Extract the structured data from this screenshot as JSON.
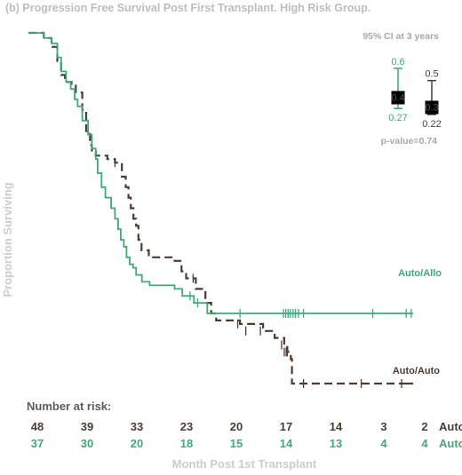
{
  "colors": {
    "auto_auto": "#4a3c34",
    "auto_allo": "#3faa78",
    "muted": "#a8a8a8"
  },
  "chart_data": {
    "type": "line",
    "title": "(b)  Progression Free Survival Post First Transplant. High Risk Group.",
    "xlabel": "Month Post 1st Transplant",
    "ylabel": "Proportion Surviving",
    "xlim": [
      0,
      100
    ],
    "ylim": [
      0,
      1
    ],
    "grid": false,
    "series": [
      {
        "name": "Auto/Allo",
        "color": "#3faa78",
        "style": "solid",
        "steps": [
          [
            0,
            1.0
          ],
          [
            4,
            0.985
          ],
          [
            6,
            0.97
          ],
          [
            7.5,
            0.93
          ],
          [
            8.5,
            0.89
          ],
          [
            9.8,
            0.86
          ],
          [
            11,
            0.84
          ],
          [
            12,
            0.81
          ],
          [
            12.8,
            0.79
          ],
          [
            14,
            0.75
          ],
          [
            15.5,
            0.71
          ],
          [
            16.5,
            0.67
          ],
          [
            17.5,
            0.64
          ],
          [
            18,
            0.6
          ],
          [
            19,
            0.56
          ],
          [
            20,
            0.53
          ],
          [
            21.5,
            0.5
          ],
          [
            22.5,
            0.47
          ],
          [
            23.3,
            0.44
          ],
          [
            24,
            0.41
          ],
          [
            24.8,
            0.39
          ],
          [
            25.5,
            0.36
          ],
          [
            26.3,
            0.34
          ],
          [
            27.2,
            0.33
          ],
          [
            28,
            0.31
          ],
          [
            29.5,
            0.29
          ],
          [
            31.5,
            0.28
          ],
          [
            38,
            0.27
          ],
          [
            40,
            0.25
          ],
          [
            43,
            0.23
          ],
          [
            46.5,
            0.2
          ],
          [
            100,
            0.2
          ]
        ],
        "end_x": 100,
        "censors": [
          [
            42,
            0.25
          ],
          [
            44,
            0.23
          ],
          [
            55,
            0.2
          ],
          [
            66.3,
            0.2
          ],
          [
            66.9,
            0.2
          ],
          [
            67.5,
            0.2
          ],
          [
            68.1,
            0.2
          ],
          [
            68.8,
            0.2
          ],
          [
            69.4,
            0.2
          ],
          [
            70.2,
            0.2
          ],
          [
            71.5,
            0.2
          ],
          [
            89.5,
            0.2
          ],
          [
            98.2,
            0.2
          ],
          [
            99.5,
            0.2
          ]
        ]
      },
      {
        "name": "Auto/Auto",
        "color": "#4a3c34",
        "style": "dashed",
        "steps": [
          [
            0,
            1.0
          ],
          [
            4,
            0.985
          ],
          [
            6,
            0.96
          ],
          [
            7.5,
            0.92
          ],
          [
            8.5,
            0.88
          ],
          [
            9.5,
            0.86
          ],
          [
            11.2,
            0.85
          ],
          [
            12.3,
            0.83
          ],
          [
            14,
            0.78
          ],
          [
            15,
            0.72
          ],
          [
            16,
            0.68
          ],
          [
            16.5,
            0.66
          ],
          [
            17.5,
            0.65
          ],
          [
            20.5,
            0.64
          ],
          [
            22.5,
            0.63
          ],
          [
            24.3,
            0.59
          ],
          [
            25.3,
            0.56
          ],
          [
            26,
            0.53
          ],
          [
            26.6,
            0.5
          ],
          [
            27.3,
            0.47
          ],
          [
            28,
            0.45
          ],
          [
            28.6,
            0.41
          ],
          [
            29.4,
            0.38
          ],
          [
            31.3,
            0.36
          ],
          [
            38,
            0.35
          ],
          [
            39.8,
            0.32
          ],
          [
            41,
            0.3
          ],
          [
            43.5,
            0.27
          ],
          [
            46,
            0.23
          ],
          [
            47.5,
            0.2
          ],
          [
            48.8,
            0.18
          ],
          [
            55,
            0.17
          ],
          [
            61,
            0.15
          ],
          [
            64,
            0.13
          ],
          [
            66.5,
            0.11
          ],
          [
            67.3,
            0.09
          ],
          [
            68.2,
            0.07
          ],
          [
            68.5,
            0.0
          ],
          [
            100,
            0.0
          ]
        ],
        "end_x": 98,
        "censors": [
          [
            22.5,
            0.63
          ],
          [
            42.8,
            0.3
          ],
          [
            54.4,
            0.17
          ],
          [
            56.5,
            0.15
          ],
          [
            60.3,
            0.15
          ],
          [
            65.8,
            0.11
          ],
          [
            66.5,
            0.09
          ],
          [
            67,
            0.09
          ],
          [
            67.3,
            0.09
          ],
          [
            71.5,
            0.0
          ],
          [
            86.5,
            0.0
          ],
          [
            97,
            0.0
          ]
        ]
      }
    ],
    "ci_panel": {
      "title": "95% CI at 3 years",
      "p_value": "p-value=0.74",
      "items": [
        {
          "group": "Auto/Allo",
          "upper": 0.6,
          "lower": 0.27,
          "point_label": "0.4",
          "color": "#3faa78"
        },
        {
          "group": "Auto/Auto",
          "upper": 0.5,
          "lower": 0.22,
          "point_label": "0.3",
          "color": "#4a3c34"
        }
      ]
    },
    "risk_table": {
      "header": "Number at risk:",
      "rows": [
        {
          "group": "Auto/Auto",
          "color": "#4a3c34",
          "counts": [
            "48",
            "39",
            "33",
            "23",
            "20",
            "17",
            "14",
            "3",
            "2"
          ]
        },
        {
          "group": "Auto/Allo",
          "color": "#3faa78",
          "counts": [
            "37",
            "30",
            "20",
            "18",
            "15",
            "14",
            "13",
            "4",
            "4"
          ]
        }
      ]
    }
  }
}
